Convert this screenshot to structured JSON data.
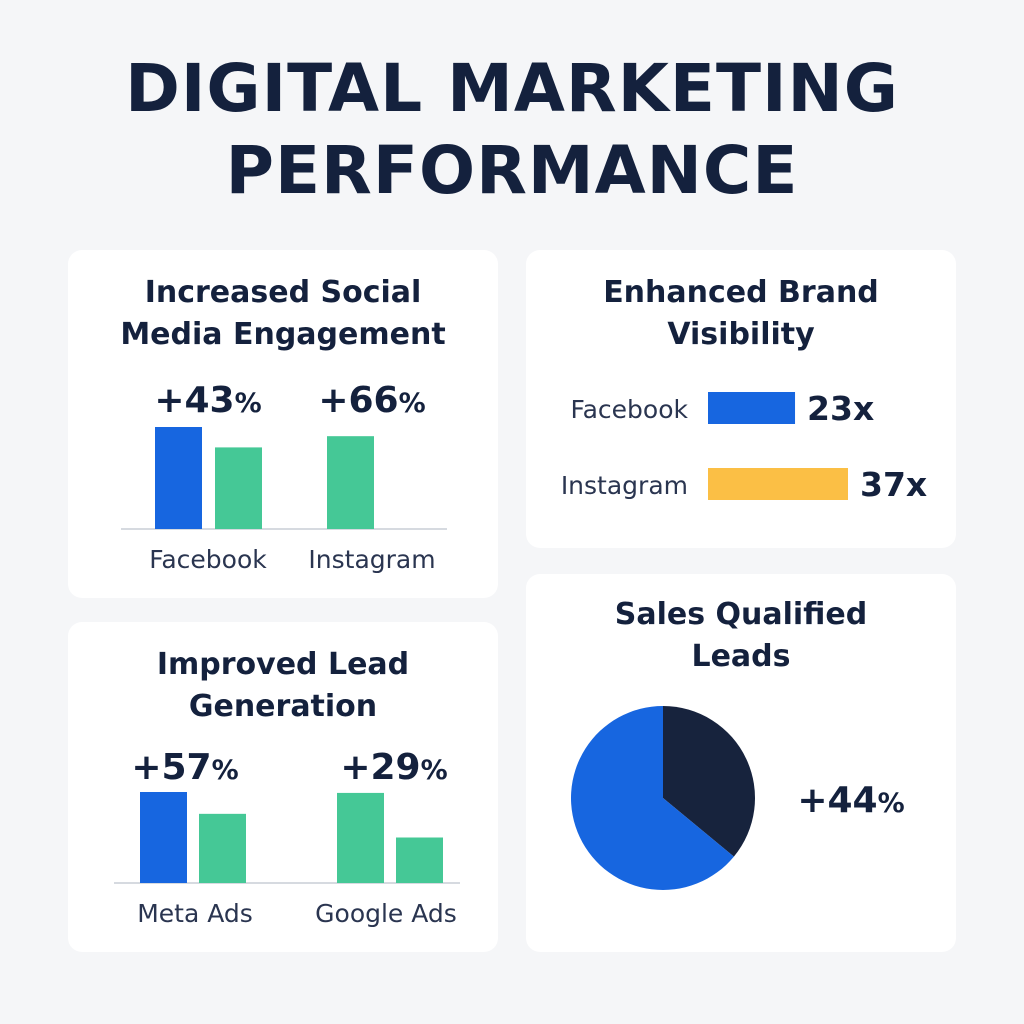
{
  "page": {
    "title_line1": "DIGITAL MARKETING",
    "title_line2": "PERFORMANCE"
  },
  "colors": {
    "navy": "#14213d",
    "blue": "#1766e0",
    "green": "#45c896",
    "yellow": "#fbbf45",
    "pie_dark": "#17233d",
    "axis": "#c9ced6"
  },
  "chart_data": [
    {
      "id": "engagement",
      "type": "bar",
      "title_line1": "Increased Social",
      "title_line2": "Media Engagement",
      "categories": [
        "Facebook",
        "Instagram"
      ],
      "labels": [
        "+43%",
        "+66%"
      ],
      "groups": [
        {
          "category": "Facebook",
          "label": "+43%",
          "bars": [
            {
              "value": 100,
              "color": "#1766e0"
            },
            {
              "value": 80,
              "color": "#45c896"
            }
          ]
        },
        {
          "category": "Instagram",
          "label": "+66%",
          "bars": [
            {
              "value": 91,
              "color": "#45c896"
            }
          ]
        }
      ],
      "ylim": [
        0,
        100
      ]
    },
    {
      "id": "brand-visibility",
      "type": "bar",
      "orientation": "horizontal",
      "title_line1": "Enhanced Brand",
      "title_line2": "Visibility",
      "categories": [
        "Facebook",
        "Instagram"
      ],
      "values": [
        23,
        37
      ],
      "labels": [
        "23x",
        "37x"
      ],
      "colors": [
        "#1766e0",
        "#fbbf45"
      ]
    },
    {
      "id": "lead-generation",
      "type": "bar",
      "title_line1": "Improved Lead",
      "title_line2": "Generation",
      "categories": [
        "Meta Ads",
        "Google Ads"
      ],
      "labels": [
        "+57%",
        "+29%"
      ],
      "groups": [
        {
          "category": "Meta Ads",
          "label": "+57%",
          "bars": [
            {
              "value": 100,
              "color": "#1766e0"
            },
            {
              "value": 76,
              "color": "#45c896"
            }
          ]
        },
        {
          "category": "Google Ads",
          "label": "+29%",
          "bars": [
            {
              "value": 99,
              "color": "#45c896"
            },
            {
              "value": 50,
              "color": "#45c896"
            }
          ]
        }
      ],
      "ylim": [
        0,
        100
      ]
    },
    {
      "id": "sales-qualified-leads",
      "type": "pie",
      "title_line1": "Sales Qualified",
      "title_line2": "Leads",
      "label": "+44%",
      "slices": [
        {
          "value": 36,
          "color": "#17233d"
        },
        {
          "value": 64,
          "color": "#1766e0"
        }
      ]
    }
  ]
}
